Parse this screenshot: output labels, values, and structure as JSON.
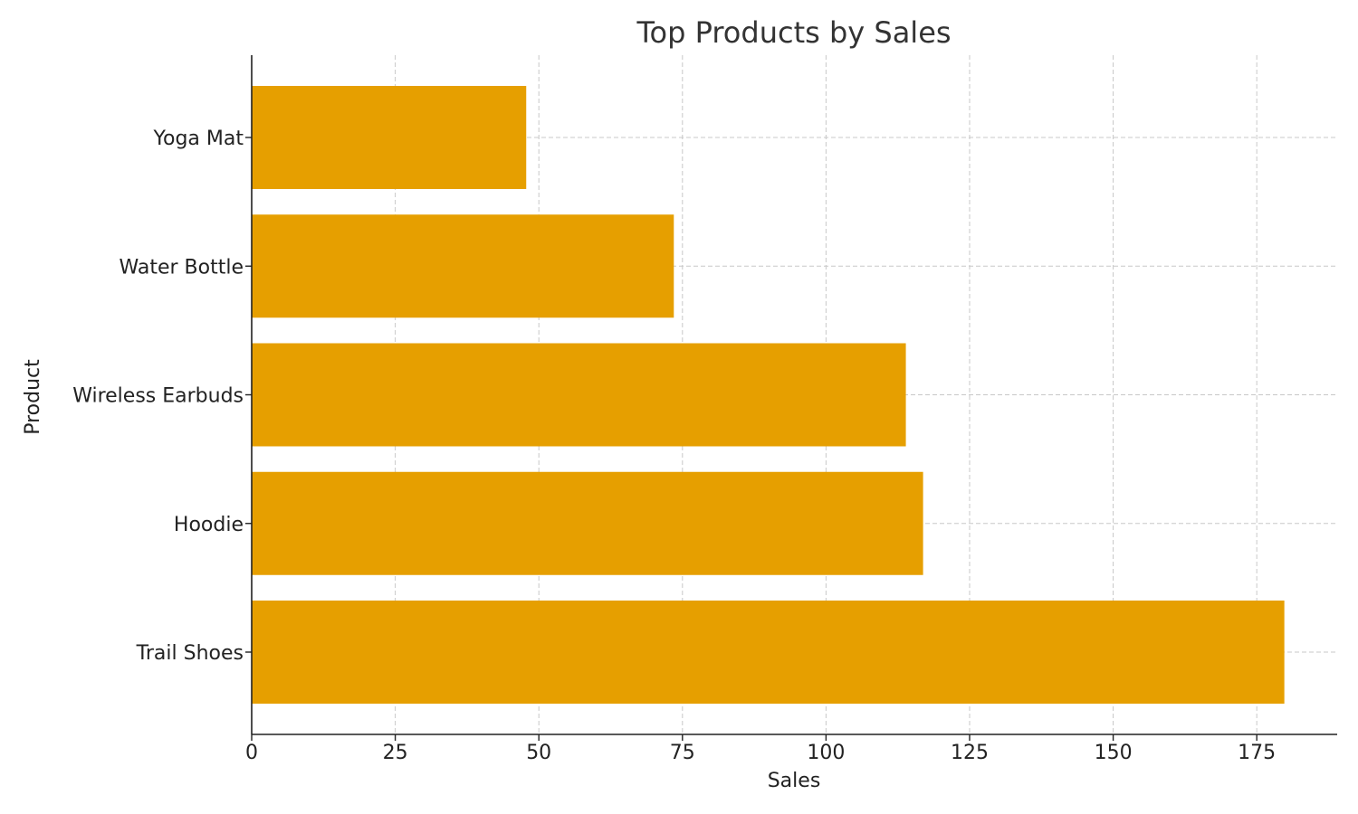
{
  "chart_data": {
    "type": "bar",
    "orientation": "horizontal",
    "title": "Top Products by Sales",
    "xlabel": "Sales",
    "ylabel": "Product",
    "categories": [
      "Trail Shoes",
      "Hoodie",
      "Wireless Earbuds",
      "Water Bottle",
      "Yoga Mat"
    ],
    "values": [
      179.8,
      116.9,
      113.9,
      73.5,
      47.8
    ],
    "xlim": [
      0,
      189
    ],
    "xticks": [
      0,
      25,
      50,
      75,
      100,
      125,
      150,
      175
    ],
    "grid": true,
    "bar_color": "#E69F00"
  }
}
